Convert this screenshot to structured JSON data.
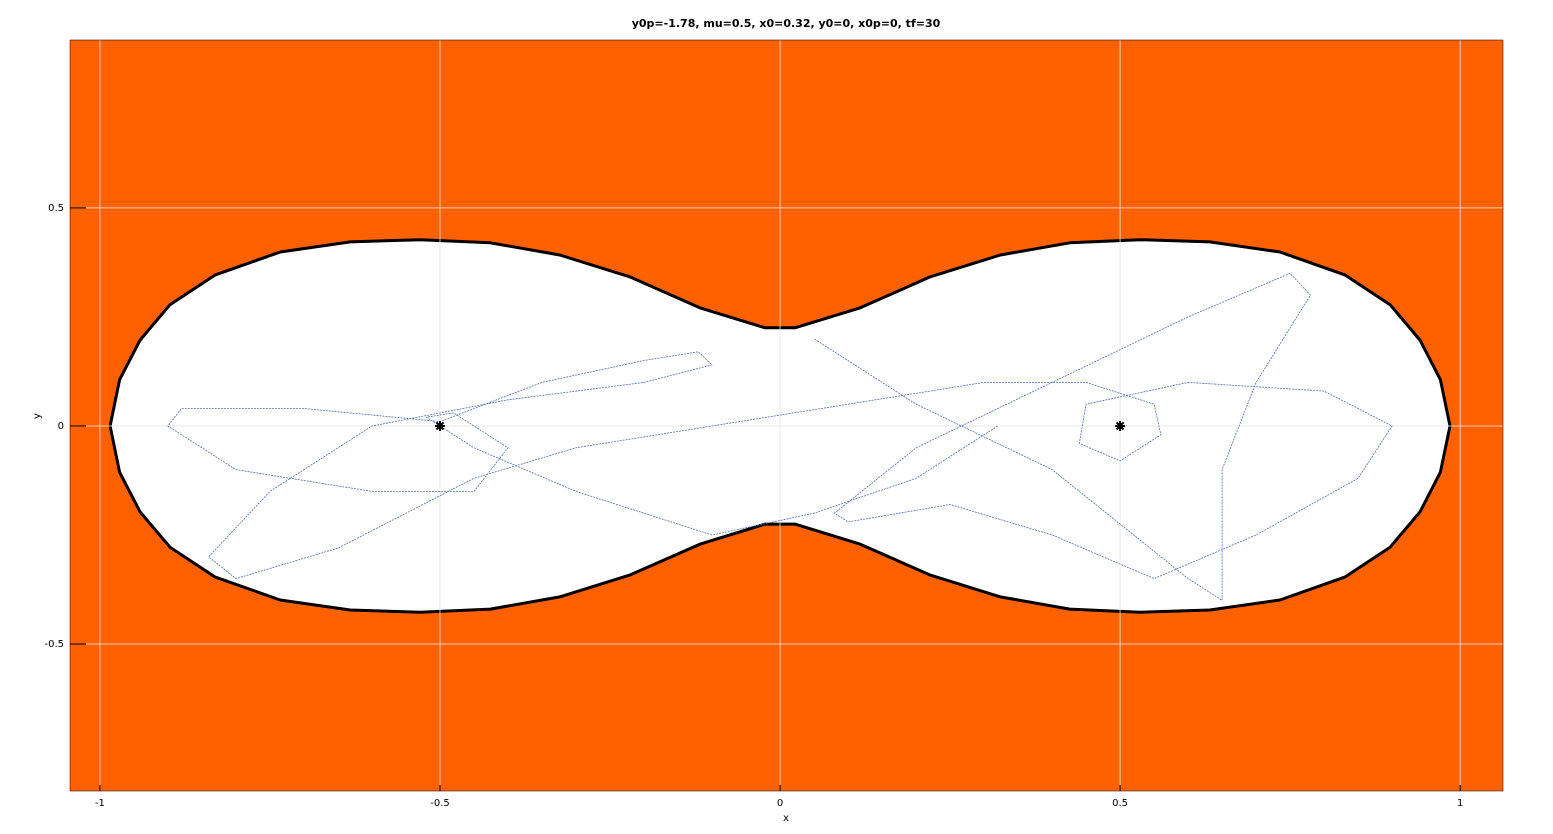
{
  "chart_data": {
    "type": "line",
    "title": "y0p=-1.78, mu=0.5, x0=0.32, y0=0, x0p=0, tf=30",
    "x_label": "x",
    "y_label": "y",
    "xlim": [
      -1.044,
      1.063
    ],
    "ylim": [
      -0.837,
      0.885
    ],
    "xticks": [
      -1,
      -0.5,
      0,
      0.5,
      1
    ],
    "yticks": [
      -0.5,
      0,
      0.5
    ],
    "grid": true,
    "background_color": "#ff6000",
    "boundary": {
      "color": "#000000",
      "x": [
        -0.985,
        -0.971,
        -0.941,
        -0.897,
        -0.831,
        -0.735,
        -0.632,
        -0.529,
        -0.426,
        -0.324,
        -0.221,
        -0.118,
        -0.022,
        0.022,
        0.118,
        0.221,
        0.324,
        0.426,
        0.529,
        0.632,
        0.735,
        0.831,
        0.897,
        0.941,
        0.971,
        0.985,
        0.971,
        0.941,
        0.897,
        0.831,
        0.735,
        0.632,
        0.529,
        0.426,
        0.324,
        0.221,
        0.118,
        0.022,
        -0.022,
        -0.118,
        -0.221,
        -0.324,
        -0.426,
        -0.529,
        -0.632,
        -0.735,
        -0.831,
        -0.897,
        -0.941,
        -0.971
      ],
      "y": [
        0,
        0.106,
        0.197,
        0.278,
        0.346,
        0.399,
        0.422,
        0.427,
        0.42,
        0.392,
        0.342,
        0.271,
        0.225,
        0.225,
        0.271,
        0.342,
        0.392,
        0.42,
        0.427,
        0.422,
        0.399,
        0.346,
        0.278,
        0.197,
        0.106,
        0,
        -0.106,
        -0.197,
        -0.278,
        -0.346,
        -0.399,
        -0.422,
        -0.427,
        -0.42,
        -0.392,
        -0.342,
        -0.271,
        -0.225,
        -0.225,
        -0.271,
        -0.342,
        -0.392,
        -0.42,
        -0.427,
        -0.422,
        -0.399,
        -0.346,
        -0.278,
        -0.197,
        -0.106
      ]
    },
    "trajectory": {
      "color": "#4a6fb5",
      "x": [
        0.32,
        0.2,
        0.05,
        -0.1,
        -0.3,
        -0.45,
        -0.52,
        -0.48,
        -0.4,
        -0.45,
        -0.6,
        -0.8,
        -0.9,
        -0.88,
        -0.7,
        -0.5,
        -0.35,
        -0.2,
        -0.12,
        -0.1,
        -0.2,
        -0.4,
        -0.6,
        -0.75,
        -0.84,
        -0.8,
        -0.65,
        -0.45,
        -0.3,
        -0.1,
        0.1,
        0.3,
        0.45,
        0.55,
        0.56,
        0.5,
        0.44,
        0.45,
        0.6,
        0.8,
        0.9,
        0.85,
        0.7,
        0.55,
        0.4,
        0.25,
        0.1,
        0.08,
        0.2,
        0.4,
        0.6,
        0.75,
        0.78,
        0.7,
        0.65,
        0.65,
        0.6,
        0.4,
        0.2,
        0.05
      ],
      "y": [
        0,
        -0.12,
        -0.2,
        -0.25,
        -0.15,
        -0.05,
        0.02,
        0.03,
        -0.05,
        -0.15,
        -0.15,
        -0.1,
        0,
        0.04,
        0.04,
        0.01,
        0.1,
        0.15,
        0.17,
        0.14,
        0.1,
        0.06,
        0,
        -0.15,
        -0.3,
        -0.35,
        -0.28,
        -0.12,
        -0.05,
        0,
        0.05,
        0.1,
        0.1,
        0.05,
        -0.02,
        -0.08,
        -0.04,
        0.05,
        0.1,
        0.08,
        0,
        -0.12,
        -0.25,
        -0.35,
        -0.25,
        -0.18,
        -0.22,
        -0.2,
        -0.05,
        0.1,
        0.25,
        0.35,
        0.3,
        0.1,
        -0.1,
        -0.4,
        -0.35,
        -0.1,
        0.05,
        0.2
      ]
    },
    "bodies": {
      "color": "#000000",
      "x": [
        -0.5,
        0.5
      ],
      "y": [
        0,
        0
      ]
    }
  }
}
